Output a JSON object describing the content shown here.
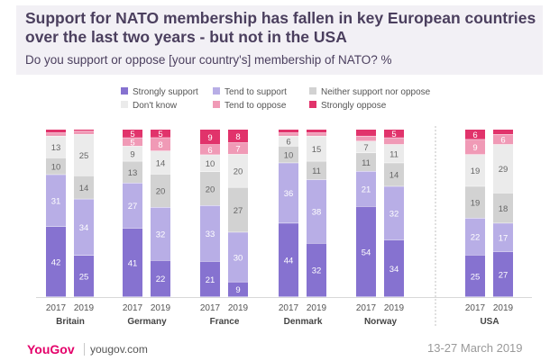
{
  "header": {
    "title": "Support for NATO membership has fallen in key European countries over the last two years - but not in the USA",
    "subtitle": "Do you support or oppose [your country's] membership of NATO? %"
  },
  "footer": {
    "brand": "YouGov",
    "website": "yougov.com",
    "date": "13-27 March 2019"
  },
  "colors": {
    "strongly_support": "#8672d0",
    "tend_to_support": "#b8aee6",
    "neither": "#d2d2d2",
    "dont_know": "#ebebeb",
    "tend_to_oppose": "#f09ab6",
    "strongly_oppose": "#e1336b"
  },
  "chart_data": {
    "type": "bar",
    "stacked": true,
    "legend": [
      {
        "key": "strongly_support",
        "label": "Strongly support"
      },
      {
        "key": "tend_to_support",
        "label": "Tend to support"
      },
      {
        "key": "neither",
        "label": "Neither support nor oppose"
      },
      {
        "key": "dont_know",
        "label": "Don't know"
      },
      {
        "key": "tend_to_oppose",
        "label": "Tend to oppose"
      },
      {
        "key": "strongly_oppose",
        "label": "Strongly oppose"
      }
    ],
    "groups": [
      {
        "country": "Britain",
        "bars": [
          {
            "year": "2017",
            "values": [
              42,
              31,
              10,
              13,
              2,
              2
            ]
          },
          {
            "year": "2019",
            "values": [
              25,
              34,
              14,
              25,
              2,
              1
            ]
          }
        ]
      },
      {
        "country": "Germany",
        "bars": [
          {
            "year": "2017",
            "values": [
              41,
              27,
              13,
              9,
              5,
              5
            ]
          },
          {
            "year": "2019",
            "values": [
              22,
              32,
              20,
              14,
              8,
              5
            ]
          }
        ]
      },
      {
        "country": "France",
        "bars": [
          {
            "year": "2017",
            "values": [
              21,
              33,
              20,
              10,
              6,
              9
            ]
          },
          {
            "year": "2019",
            "values": [
              9,
              30,
              27,
              20,
              7,
              8
            ]
          }
        ]
      },
      {
        "country": "Denmark",
        "bars": [
          {
            "year": "2017",
            "values": [
              44,
              36,
              10,
              6,
              2,
              2
            ]
          },
          {
            "year": "2019",
            "values": [
              32,
              38,
              11,
              15,
              2,
              2
            ]
          }
        ]
      },
      {
        "country": "Norway",
        "bars": [
          {
            "year": "2017",
            "values": [
              54,
              21,
              11,
              7,
              3,
              4
            ]
          },
          {
            "year": "2019",
            "values": [
              34,
              32,
              14,
              11,
              4,
              5
            ]
          }
        ]
      },
      {
        "country": "USA",
        "bars": [
          {
            "year": "2017",
            "values": [
              25,
              22,
              19,
              19,
              9,
              6
            ]
          },
          {
            "year": "2019",
            "values": [
              27,
              17,
              18,
              29,
              6,
              3
            ]
          }
        ]
      }
    ],
    "ylim": [
      0,
      100
    ]
  }
}
